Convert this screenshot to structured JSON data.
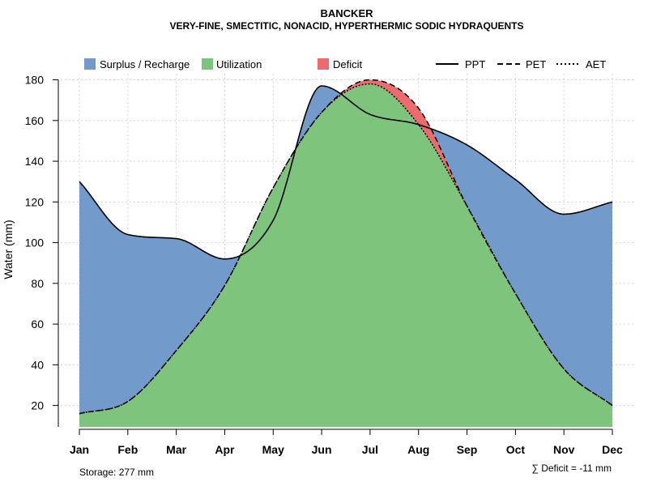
{
  "chart_data": {
    "type": "area",
    "title": "BANCKER",
    "subtitle": "VERY-FINE, SMECTITIC, NONACID, HYPERTHERMIC SODIC HYDRAQUENTS",
    "ylabel": "Water (mm)",
    "xlabel": "",
    "ylim": [
      9.5,
      183
    ],
    "yticks": [
      20,
      40,
      60,
      80,
      100,
      120,
      140,
      160,
      180
    ],
    "categories": [
      "Jan",
      "Feb",
      "Mar",
      "Apr",
      "May",
      "Jun",
      "Jul",
      "Aug",
      "Sep",
      "Oct",
      "Nov",
      "Dec"
    ],
    "grid": true,
    "series": [
      {
        "name": "PPT",
        "style": "solid",
        "values": [
          130,
          104,
          102,
          92,
          111,
          177,
          163,
          158,
          148,
          131,
          114,
          120
        ]
      },
      {
        "name": "PET",
        "style": "dashed",
        "values": [
          16,
          22,
          47,
          79,
          127,
          164,
          180,
          166,
          118,
          75,
          38,
          20
        ]
      },
      {
        "name": "AET",
        "style": "dotted",
        "values": [
          16,
          22,
          47,
          79,
          127,
          164,
          178,
          158,
          118,
          75,
          38,
          20
        ]
      }
    ],
    "legend": [
      {
        "label": "Surplus / Recharge",
        "color": "#729ACA",
        "kind": "swatch"
      },
      {
        "label": "Utilization",
        "color": "#7FC47C",
        "kind": "swatch"
      },
      {
        "label": "Deficit",
        "color": "#EB6B6E",
        "kind": "swatch"
      },
      {
        "label": "PPT",
        "kind": "line",
        "style": "solid"
      },
      {
        "label": "PET",
        "kind": "line",
        "style": "dashed"
      },
      {
        "label": "AET",
        "kind": "line",
        "style": "dotted"
      }
    ],
    "legend_position": "top",
    "storage_text": "Storage: 277 mm",
    "deficit_text": "∑ Deficit = -11 mm"
  },
  "colors": {
    "surplus": "#729ACA",
    "utilization": "#7FC47C",
    "deficit": "#EB6B6E",
    "grid": "#D3D3D3",
    "line": "#000000"
  }
}
